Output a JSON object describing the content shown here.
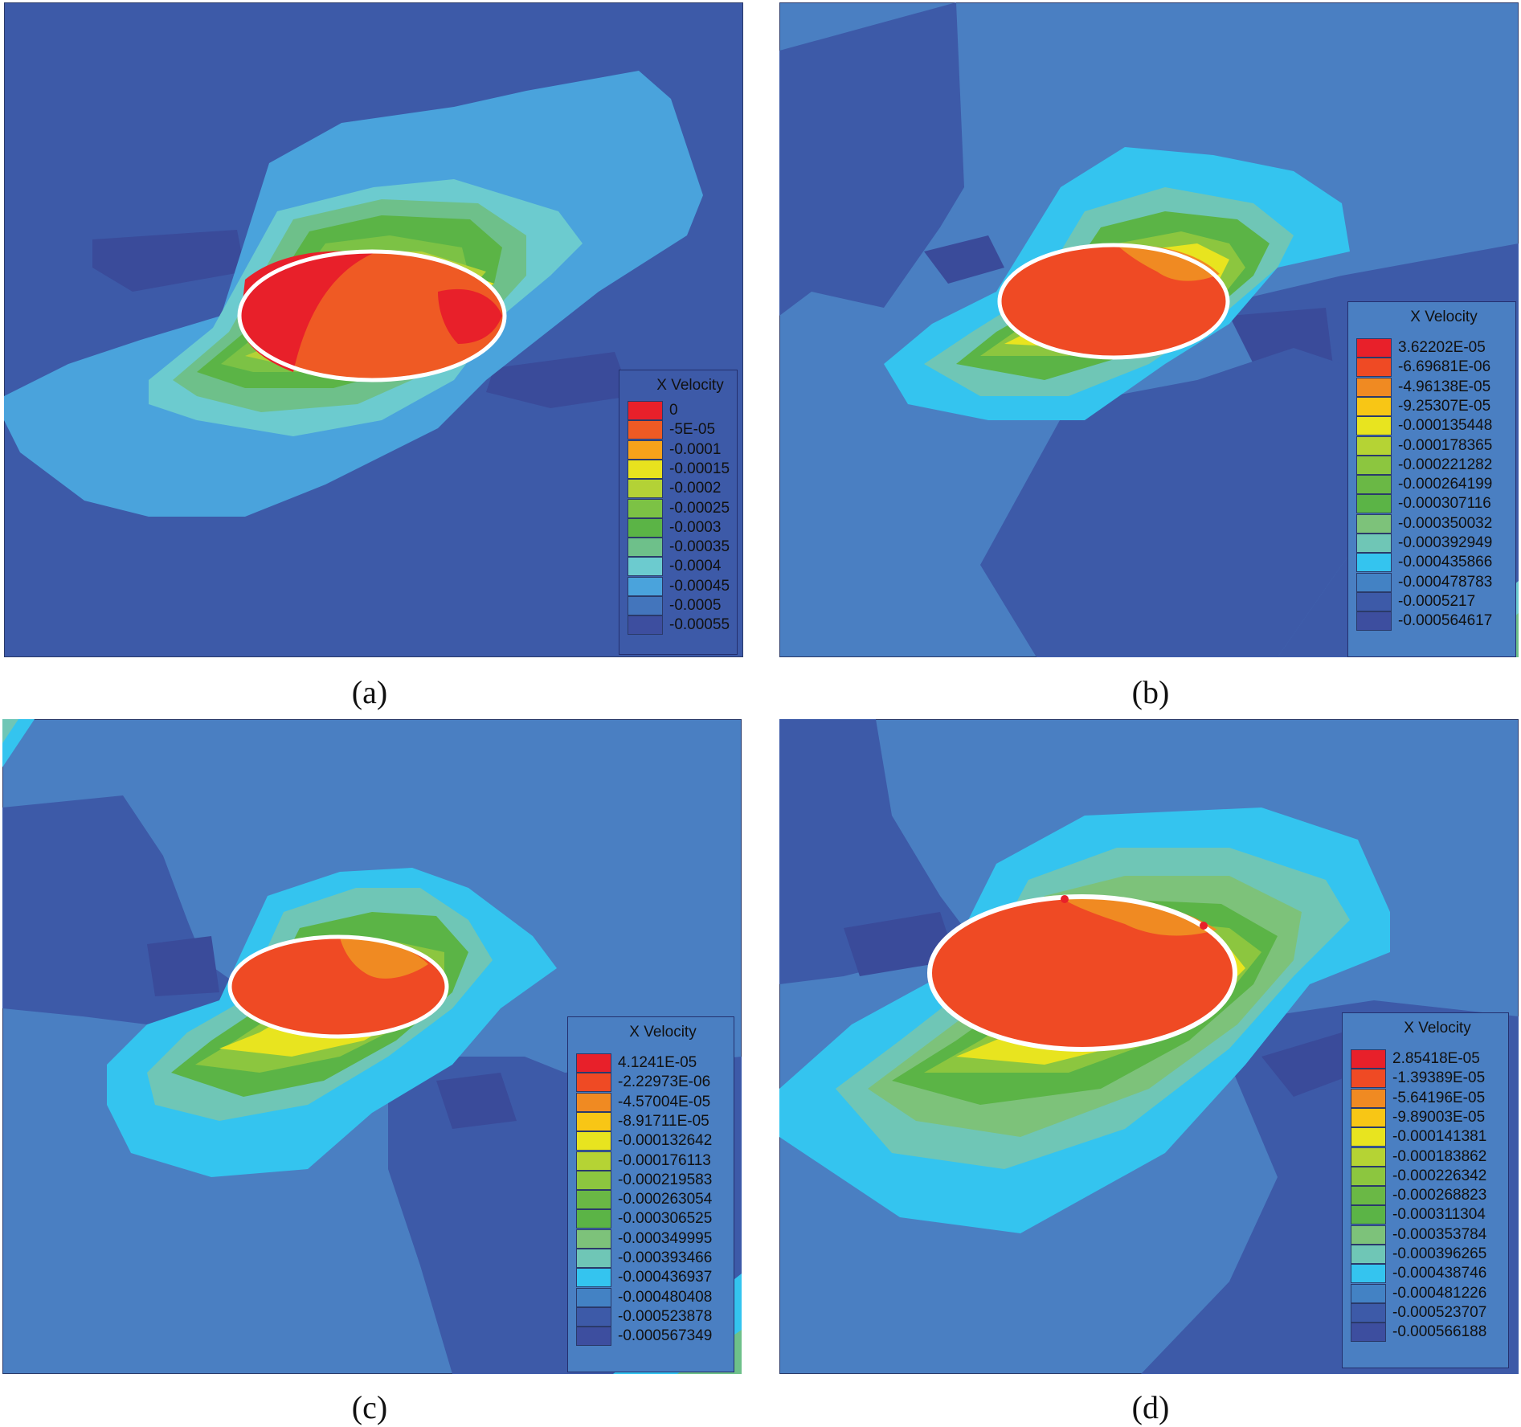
{
  "figure": {
    "panels": [
      {
        "id": "a",
        "caption": "(a)",
        "legend": {
          "title": "X Velocity",
          "labels": [
            "0",
            "-5E-05",
            "-0.0001",
            "-0.00015",
            "-0.0002",
            "-0.00025",
            "-0.0003",
            "-0.00035",
            "-0.0004",
            "-0.00045",
            "-0.0005",
            "-0.00055"
          ]
        }
      },
      {
        "id": "b",
        "caption": "(b)",
        "legend": {
          "title": "X Velocity",
          "labels": [
            "3.62202E-05",
            "-6.69681E-06",
            "-4.96138E-05",
            "-9.25307E-05",
            "-0.000135448",
            "-0.000178365",
            "-0.000221282",
            "-0.000264199",
            "-0.000307116",
            "-0.000350032",
            "-0.000392949",
            "-0.000435866",
            "-0.000478783",
            "-0.0005217",
            "-0.000564617"
          ]
        }
      },
      {
        "id": "c",
        "caption": "(c)",
        "legend": {
          "title": "X Velocity",
          "labels": [
            "4.1241E-05",
            "-2.22973E-06",
            "-4.57004E-05",
            "-8.91711E-05",
            "-0.000132642",
            "-0.000176113",
            "-0.000219583",
            "-0.000263054",
            "-0.000306525",
            "-0.000349995",
            "-0.000393466",
            "-0.000436937",
            "-0.000480408",
            "-0.000523878",
            "-0.000567349"
          ]
        }
      },
      {
        "id": "d",
        "caption": "(d)",
        "legend": {
          "title": "X Velocity",
          "labels": [
            "2.85418E-05",
            "-1.39389E-05",
            "-5.64196E-05",
            "-9.89003E-05",
            "-0.000141381",
            "-0.000183862",
            "-0.000226342",
            "-0.000268823",
            "-0.000311304",
            "-0.000353784",
            "-0.000396265",
            "-0.000438746",
            "-0.000481226",
            "-0.000523707",
            "-0.000566188"
          ]
        }
      }
    ],
    "colors": {
      "scale12": [
        "#e8202a",
        "#ef5a24",
        "#f7a21a",
        "#e8e21e",
        "#b3d236",
        "#7cc245",
        "#5bb446",
        "#6ec08a",
        "#6ccbcf",
        "#4aa3dc",
        "#4375bc",
        "#3d4e9f"
      ],
      "scale15": [
        "#e8202a",
        "#ef4a24",
        "#f08a22",
        "#f8c615",
        "#e8e41f",
        "#b5d334",
        "#8cc63f",
        "#6ab845",
        "#5bb446",
        "#7dc27a",
        "#6fc6b6",
        "#34c4ef",
        "#4382c4",
        "#3d5aa8",
        "#3d4e9f"
      ],
      "background_dark": "#3f5ca8",
      "background_mid": "#4a7fc2",
      "hole_outline": "#ffffff"
    }
  }
}
